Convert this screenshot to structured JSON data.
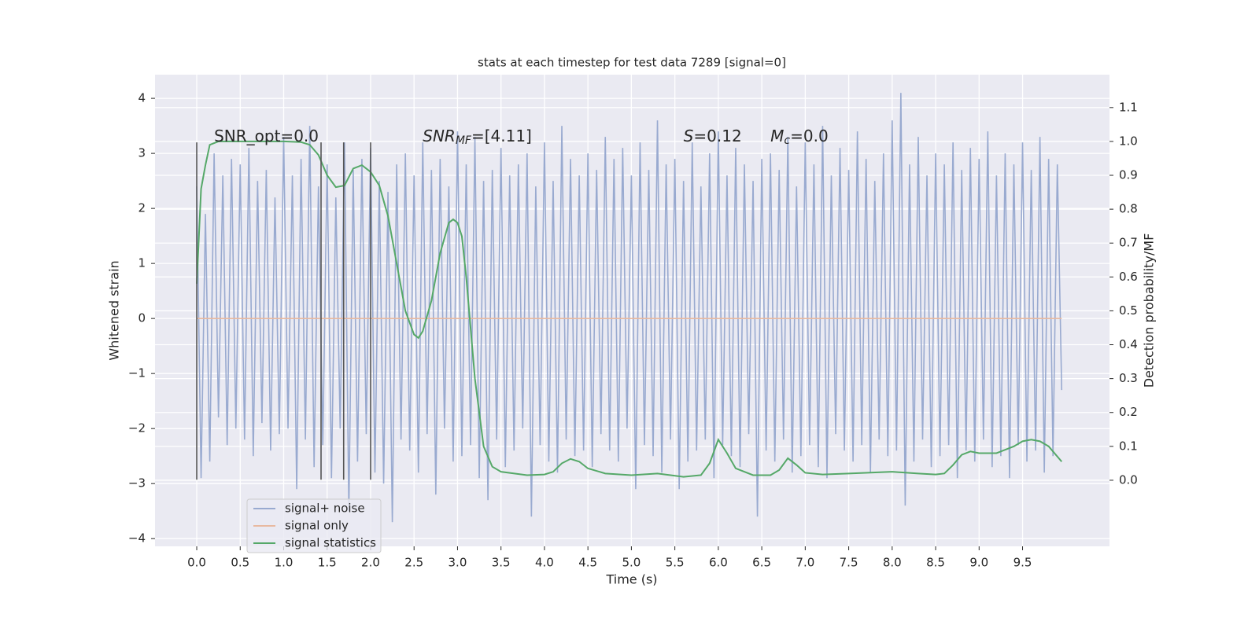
{
  "chart_data": {
    "type": "line",
    "title": "stats at each timestep for test data 7289 [signal=0]",
    "xlabel": "Time (s)",
    "ylabel": "Whitened strain",
    "y2label": "Detection probability/MF",
    "grid": true,
    "legend": "lower left",
    "xlim": [
      -0.48,
      10.5
    ],
    "ylim": [
      -4.14,
      4.43
    ],
    "y2lim": [
      -0.195,
      1.197
    ],
    "xticks": [
      {
        "value": 0,
        "label": "0.0"
      },
      0.5,
      {
        "value": 1,
        "label": "1.0"
      },
      1.5,
      {
        "value": 2,
        "label": "2.0"
      },
      2.5,
      {
        "value": 3,
        "label": "3.0"
      },
      3.5,
      {
        "value": 4,
        "label": "4.0"
      },
      4.5,
      {
        "value": 5,
        "label": "5.0"
      },
      5.5,
      {
        "value": 6,
        "label": "6.0"
      },
      6.5,
      {
        "value": 7,
        "label": "7.0"
      },
      7.5,
      {
        "value": 8,
        "label": "8.0"
      },
      8.5,
      {
        "value": 9,
        "label": "9.0"
      },
      9.5
    ],
    "yticks": [
      {
        "value": -4,
        "label": "−4"
      },
      {
        "value": -3,
        "label": "−3"
      },
      {
        "value": -2,
        "label": "−2"
      },
      {
        "value": -1,
        "label": "−1"
      },
      0,
      1,
      2,
      3,
      4
    ],
    "y2ticks": [
      {
        "value": 0,
        "label": "0.0"
      },
      0.1,
      0.2,
      0.3,
      0.4,
      0.5,
      0.6,
      0.7,
      0.8,
      0.9,
      {
        "value": 1,
        "label": "1.0"
      },
      1.1
    ],
    "vlines": {
      "x": [
        0,
        1.43,
        1.69,
        2.0
      ],
      "ymin": -2.93,
      "ymax": 3.2,
      "color": "#555555"
    },
    "annotations": [
      {
        "x": 0.2,
        "y": 3.3,
        "text": "SNR_opt=0.0"
      },
      {
        "x": 2.6,
        "y": 3.3,
        "text": "SNR",
        "sub": "MF",
        "rest": "=[4.11]"
      },
      {
        "x": 5.6,
        "y": 3.3,
        "text": "S",
        "rest": "=0.12"
      },
      {
        "x": 6.6,
        "y": 3.3,
        "text": "M",
        "sub": "c",
        "rest": "=0.0"
      }
    ],
    "series": [
      {
        "name": "signal+ noise",
        "color": "#99aad0",
        "x": [
          0,
          0.05,
          0.1,
          0.15,
          0.2,
          0.25,
          0.3,
          0.35,
          0.4,
          0.45,
          0.5,
          0.55,
          0.6,
          0.65,
          0.7,
          0.75,
          0.8,
          0.85,
          0.9,
          0.95,
          1,
          1.05,
          1.1,
          1.15,
          1.2,
          1.25,
          1.3,
          1.35,
          1.4,
          1.45,
          1.5,
          1.55,
          1.6,
          1.65,
          1.7,
          1.75,
          1.8,
          1.85,
          1.9,
          1.95,
          2,
          2.05,
          2.1,
          2.15,
          2.2,
          2.25,
          2.3,
          2.35,
          2.4,
          2.45,
          2.5,
          2.55,
          2.6,
          2.65,
          2.7,
          2.75,
          2.8,
          2.85,
          2.9,
          2.95,
          3,
          3.05,
          3.1,
          3.15,
          3.2,
          3.25,
          3.3,
          3.35,
          3.4,
          3.45,
          3.5,
          3.55,
          3.6,
          3.65,
          3.7,
          3.75,
          3.8,
          3.85,
          3.9,
          3.95,
          4,
          4.05,
          4.1,
          4.15,
          4.2,
          4.25,
          4.3,
          4.35,
          4.4,
          4.45,
          4.5,
          4.55,
          4.6,
          4.65,
          4.7,
          4.75,
          4.8,
          4.85,
          4.9,
          4.95,
          5,
          5.05,
          5.1,
          5.15,
          5.2,
          5.25,
          5.3,
          5.35,
          5.4,
          5.45,
          5.5,
          5.55,
          5.6,
          5.65,
          5.7,
          5.75,
          5.8,
          5.85,
          5.9,
          5.95,
          6,
          6.05,
          6.1,
          6.15,
          6.2,
          6.25,
          6.3,
          6.35,
          6.4,
          6.45,
          6.5,
          6.55,
          6.6,
          6.65,
          6.7,
          6.75,
          6.8,
          6.85,
          6.9,
          6.95,
          7,
          7.05,
          7.1,
          7.15,
          7.2,
          7.25,
          7.3,
          7.35,
          7.4,
          7.45,
          7.5,
          7.55,
          7.6,
          7.65,
          7.7,
          7.75,
          7.8,
          7.85,
          7.9,
          7.95,
          8,
          8.05,
          8.1,
          8.15,
          8.2,
          8.25,
          8.3,
          8.35,
          8.4,
          8.45,
          8.5,
          8.55,
          8.6,
          8.65,
          8.7,
          8.75,
          8.8,
          8.85,
          8.9,
          8.95,
          9,
          9.05,
          9.1,
          9.15,
          9.2,
          9.25,
          9.3,
          9.35,
          9.4,
          9.45,
          9.5,
          9.55,
          9.6,
          9.65,
          9.7,
          9.75,
          9.8,
          9.85,
          9.9,
          9.95
        ],
        "values": [
          2.4,
          -2.9,
          1.9,
          -2.6,
          3.0,
          -1.8,
          2.6,
          -2.3,
          2.9,
          -2.0,
          2.8,
          -2.2,
          3.1,
          -2.5,
          2.5,
          -1.9,
          2.7,
          -2.4,
          2.2,
          -2.1,
          3.3,
          -2.0,
          2.6,
          -3.1,
          2.9,
          -2.2,
          3.5,
          -2.7,
          2.4,
          -2.3,
          2.8,
          -2.9,
          2.2,
          -2.0,
          3.2,
          -3.5,
          2.7,
          -2.6,
          2.9,
          -2.1,
          3.1,
          -2.8,
          2.5,
          -3.0,
          2.3,
          -3.7,
          2.8,
          -2.2,
          3.0,
          -2.4,
          2.6,
          -2.8,
          3.2,
          -2.1,
          2.7,
          -3.2,
          2.9,
          -2.0,
          2.4,
          -2.6,
          3.4,
          -2.5,
          2.8,
          -2.3,
          3.3,
          -2.9,
          2.5,
          -3.3,
          2.7,
          -2.2,
          3.1,
          -2.7,
          2.6,
          -2.4,
          2.8,
          -2.0,
          3.0,
          -3.6,
          2.4,
          -2.3,
          3.2,
          -2.6,
          2.5,
          -2.8,
          3.5,
          -2.2,
          2.9,
          -2.5,
          2.6,
          -2.4,
          3.0,
          -2.7,
          2.7,
          -2.1,
          3.3,
          -2.4,
          2.9,
          -2.6,
          3.1,
          -2.0,
          2.6,
          -3.1,
          3.2,
          -2.3,
          2.7,
          -2.5,
          3.6,
          -2.8,
          2.8,
          -2.2,
          2.9,
          -3.1,
          2.5,
          -2.6,
          3.2,
          -2.4,
          2.4,
          -2.2,
          3.0,
          -2.9,
          3.4,
          -2.3,
          2.6,
          -2.5,
          3.1,
          -2.7,
          2.8,
          -2.1,
          2.5,
          -3.6,
          2.9,
          -2.4,
          3.0,
          -2.6,
          2.7,
          -2.2,
          3.3,
          -2.8,
          2.4,
          -2.5,
          3.2,
          -2.3,
          2.8,
          -2.7,
          3.5,
          -2.9,
          2.6,
          -2.1,
          3.1,
          -2.4,
          2.7,
          -2.6,
          3.4,
          -2.3,
          2.9,
          -2.8,
          2.5,
          -2.2,
          3.0,
          -2.5,
          3.6,
          -2.4,
          4.1,
          -3.4,
          2.8,
          -2.6,
          3.3,
          -2.2,
          2.6,
          -2.7,
          3.0,
          -2.5,
          2.8,
          -2.3,
          3.2,
          -2.9,
          2.7,
          -2.4,
          3.1,
          -2.6,
          2.9,
          -2.2,
          3.4,
          -2.7,
          2.6,
          -2.5,
          3.0,
          -2.9,
          2.8,
          -2.3,
          3.2,
          -2.6,
          2.7,
          -2.4,
          3.3,
          -2.8,
          2.9,
          -2.5,
          2.8,
          -1.3
        ]
      },
      {
        "name": "signal only",
        "color": "#e8b9a0",
        "x": [
          0,
          9.95
        ],
        "values": [
          0,
          0
        ]
      },
      {
        "name": "signal statistics",
        "color": "#55a868",
        "axis": "y2",
        "x": [
          0,
          0.05,
          0.1,
          0.15,
          0.25,
          0.5,
          1,
          1.2,
          1.3,
          1.4,
          1.5,
          1.6,
          1.7,
          1.8,
          1.9,
          2,
          2.1,
          2.2,
          2.3,
          2.4,
          2.5,
          2.55,
          2.6,
          2.7,
          2.8,
          2.9,
          2.95,
          3,
          3.05,
          3.1,
          3.2,
          3.3,
          3.4,
          3.5,
          3.8,
          4,
          4.1,
          4.2,
          4.3,
          4.4,
          4.5,
          4.7,
          5,
          5.3,
          5.6,
          5.8,
          5.9,
          6,
          6.1,
          6.2,
          6.4,
          6.6,
          6.7,
          6.8,
          6.9,
          7,
          7.2,
          7.5,
          8,
          8.3,
          8.5,
          8.6,
          8.7,
          8.8,
          8.9,
          9,
          9.2,
          9.4,
          9.5,
          9.6,
          9.7,
          9.8,
          9.95
        ],
        "values": [
          0.58,
          0.86,
          0.93,
          0.99,
          1.0,
          1.0,
          1.0,
          0.998,
          0.99,
          0.96,
          0.9,
          0.865,
          0.87,
          0.92,
          0.93,
          0.91,
          0.87,
          0.78,
          0.64,
          0.5,
          0.43,
          0.42,
          0.44,
          0.53,
          0.67,
          0.76,
          0.77,
          0.76,
          0.72,
          0.6,
          0.3,
          0.1,
          0.04,
          0.025,
          0.015,
          0.017,
          0.025,
          0.05,
          0.063,
          0.055,
          0.035,
          0.02,
          0.015,
          0.02,
          0.01,
          0.015,
          0.05,
          0.12,
          0.08,
          0.035,
          0.015,
          0.015,
          0.03,
          0.065,
          0.045,
          0.022,
          0.017,
          0.02,
          0.025,
          0.02,
          0.017,
          0.02,
          0.045,
          0.075,
          0.085,
          0.08,
          0.08,
          0.1,
          0.115,
          0.12,
          0.115,
          0.1,
          0.055
        ]
      }
    ]
  }
}
